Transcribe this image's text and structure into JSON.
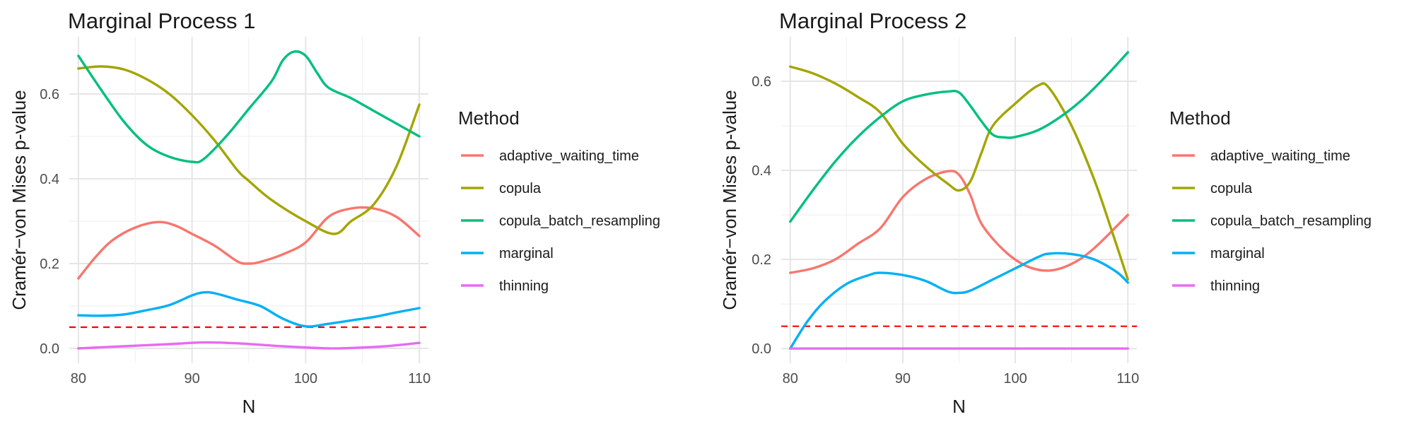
{
  "chart_data": [
    {
      "type": "line",
      "title": "Marginal Process 1",
      "xlabel": "N",
      "ylabel": "Cramér−von Mises p-value",
      "xlim": [
        79.2,
        110.8
      ],
      "ylim": [
        -0.035,
        0.735
      ],
      "xticks": [
        80,
        90,
        100,
        110
      ],
      "xtick_labels": [
        "80",
        "90",
        "100",
        "110"
      ],
      "yticks": [
        0.0,
        0.2,
        0.4,
        0.6
      ],
      "ytick_labels": [
        "0.0",
        "0.2",
        "0.4",
        "0.6"
      ],
      "grid": true,
      "reference_line": {
        "y": 0.05,
        "style": "dashed",
        "color": "#ff0000"
      },
      "series": [
        {
          "name": "adaptive_waiting_time",
          "color": "#F8766D",
          "x": [
            80,
            81.5,
            83,
            85,
            87,
            88.5,
            90,
            92,
            94,
            95,
            96,
            98,
            100,
            102,
            104,
            106,
            108,
            110
          ],
          "y": [
            0.165,
            0.215,
            0.255,
            0.285,
            0.298,
            0.29,
            0.27,
            0.242,
            0.205,
            0.2,
            0.204,
            0.222,
            0.25,
            0.31,
            0.33,
            0.33,
            0.31,
            0.265
          ]
        },
        {
          "name": "copula",
          "color": "#A3A500",
          "x": [
            80,
            82,
            84,
            86,
            88,
            90,
            92,
            94,
            95,
            97,
            100,
            102.5,
            104,
            106,
            108,
            110
          ],
          "y": [
            0.66,
            0.665,
            0.658,
            0.635,
            0.6,
            0.55,
            0.49,
            0.42,
            0.395,
            0.35,
            0.3,
            0.27,
            0.3,
            0.34,
            0.43,
            0.575
          ]
        },
        {
          "name": "copula_batch_resampling",
          "color": "#00BF7D",
          "x": [
            80,
            82,
            84,
            86,
            88,
            90,
            91,
            93,
            95,
            97,
            98,
            99,
            100,
            101,
            102,
            104,
            106,
            108,
            110
          ],
          "y": [
            0.69,
            0.61,
            0.535,
            0.48,
            0.452,
            0.44,
            0.446,
            0.5,
            0.565,
            0.63,
            0.68,
            0.7,
            0.69,
            0.65,
            0.615,
            0.59,
            0.56,
            0.53,
            0.5
          ]
        },
        {
          "name": "marginal",
          "color": "#00B0F6",
          "x": [
            80,
            82,
            84,
            86,
            88,
            90,
            91,
            92,
            94,
            96,
            98,
            100,
            102,
            104,
            106,
            108,
            110
          ],
          "y": [
            0.078,
            0.077,
            0.08,
            0.09,
            0.102,
            0.125,
            0.132,
            0.13,
            0.115,
            0.1,
            0.07,
            0.052,
            0.058,
            0.066,
            0.074,
            0.085,
            0.095
          ]
        },
        {
          "name": "thinning",
          "color": "#E76BF3",
          "x": [
            80,
            84,
            88,
            91,
            94,
            98,
            102,
            104,
            107,
            110
          ],
          "y": [
            0.0,
            0.005,
            0.01,
            0.014,
            0.012,
            0.005,
            0.0,
            0.001,
            0.005,
            0.013
          ]
        }
      ],
      "legend": {
        "title": "Method",
        "position": "right"
      }
    },
    {
      "type": "line",
      "title": "Marginal Process 2",
      "xlabel": "N",
      "ylabel": "Cramér−von Mises p-value",
      "xlim": [
        79.2,
        110.8
      ],
      "ylim": [
        -0.033,
        0.7
      ],
      "xticks": [
        80,
        90,
        100,
        110
      ],
      "xtick_labels": [
        "80",
        "90",
        "100",
        "110"
      ],
      "yticks": [
        0.0,
        0.2,
        0.4,
        0.6
      ],
      "ytick_labels": [
        "0.0",
        "0.2",
        "0.4",
        "0.6"
      ],
      "grid": true,
      "reference_line": {
        "y": 0.05,
        "style": "dashed",
        "color": "#ff0000"
      },
      "series": [
        {
          "name": "adaptive_waiting_time",
          "color": "#F8766D",
          "x": [
            80,
            82,
            84,
            86,
            88,
            90,
            92,
            94,
            95,
            96,
            97,
            99,
            101,
            103,
            105,
            107,
            110
          ],
          "y": [
            0.17,
            0.18,
            0.2,
            0.235,
            0.27,
            0.34,
            0.38,
            0.398,
            0.39,
            0.345,
            0.28,
            0.22,
            0.185,
            0.175,
            0.19,
            0.225,
            0.3
          ]
        },
        {
          "name": "copula",
          "color": "#A3A500",
          "x": [
            80,
            82,
            84,
            86,
            88,
            90,
            92,
            94,
            95,
            96,
            97,
            98,
            100,
            102,
            103,
            105,
            107,
            108.5,
            110
          ],
          "y": [
            0.633,
            0.618,
            0.595,
            0.565,
            0.53,
            0.46,
            0.41,
            0.37,
            0.355,
            0.375,
            0.44,
            0.5,
            0.55,
            0.59,
            0.585,
            0.5,
            0.38,
            0.27,
            0.155
          ]
        },
        {
          "name": "copula_batch_resampling",
          "color": "#00BF7D",
          "x": [
            80,
            82,
            84,
            86,
            88,
            90,
            92,
            94,
            95,
            96,
            97,
            98,
            99,
            100,
            102,
            104,
            106,
            108,
            110
          ],
          "y": [
            0.285,
            0.355,
            0.42,
            0.475,
            0.52,
            0.555,
            0.57,
            0.577,
            0.575,
            0.545,
            0.51,
            0.48,
            0.474,
            0.475,
            0.49,
            0.52,
            0.56,
            0.61,
            0.665
          ]
        },
        {
          "name": "marginal",
          "color": "#00B0F6",
          "x": [
            80,
            81.5,
            83,
            85,
            87,
            88,
            90,
            92,
            94,
            95,
            96,
            98,
            100,
            102,
            103,
            105,
            107,
            109,
            110
          ],
          "y": [
            0.0,
            0.06,
            0.105,
            0.145,
            0.165,
            0.17,
            0.165,
            0.152,
            0.128,
            0.125,
            0.13,
            0.155,
            0.18,
            0.205,
            0.213,
            0.212,
            0.2,
            0.172,
            0.148
          ]
        },
        {
          "name": "thinning",
          "color": "#E76BF3",
          "x": [
            80,
            110
          ],
          "y": [
            0.0,
            0.0
          ]
        }
      ],
      "legend": {
        "title": "Method",
        "position": "right"
      }
    }
  ]
}
